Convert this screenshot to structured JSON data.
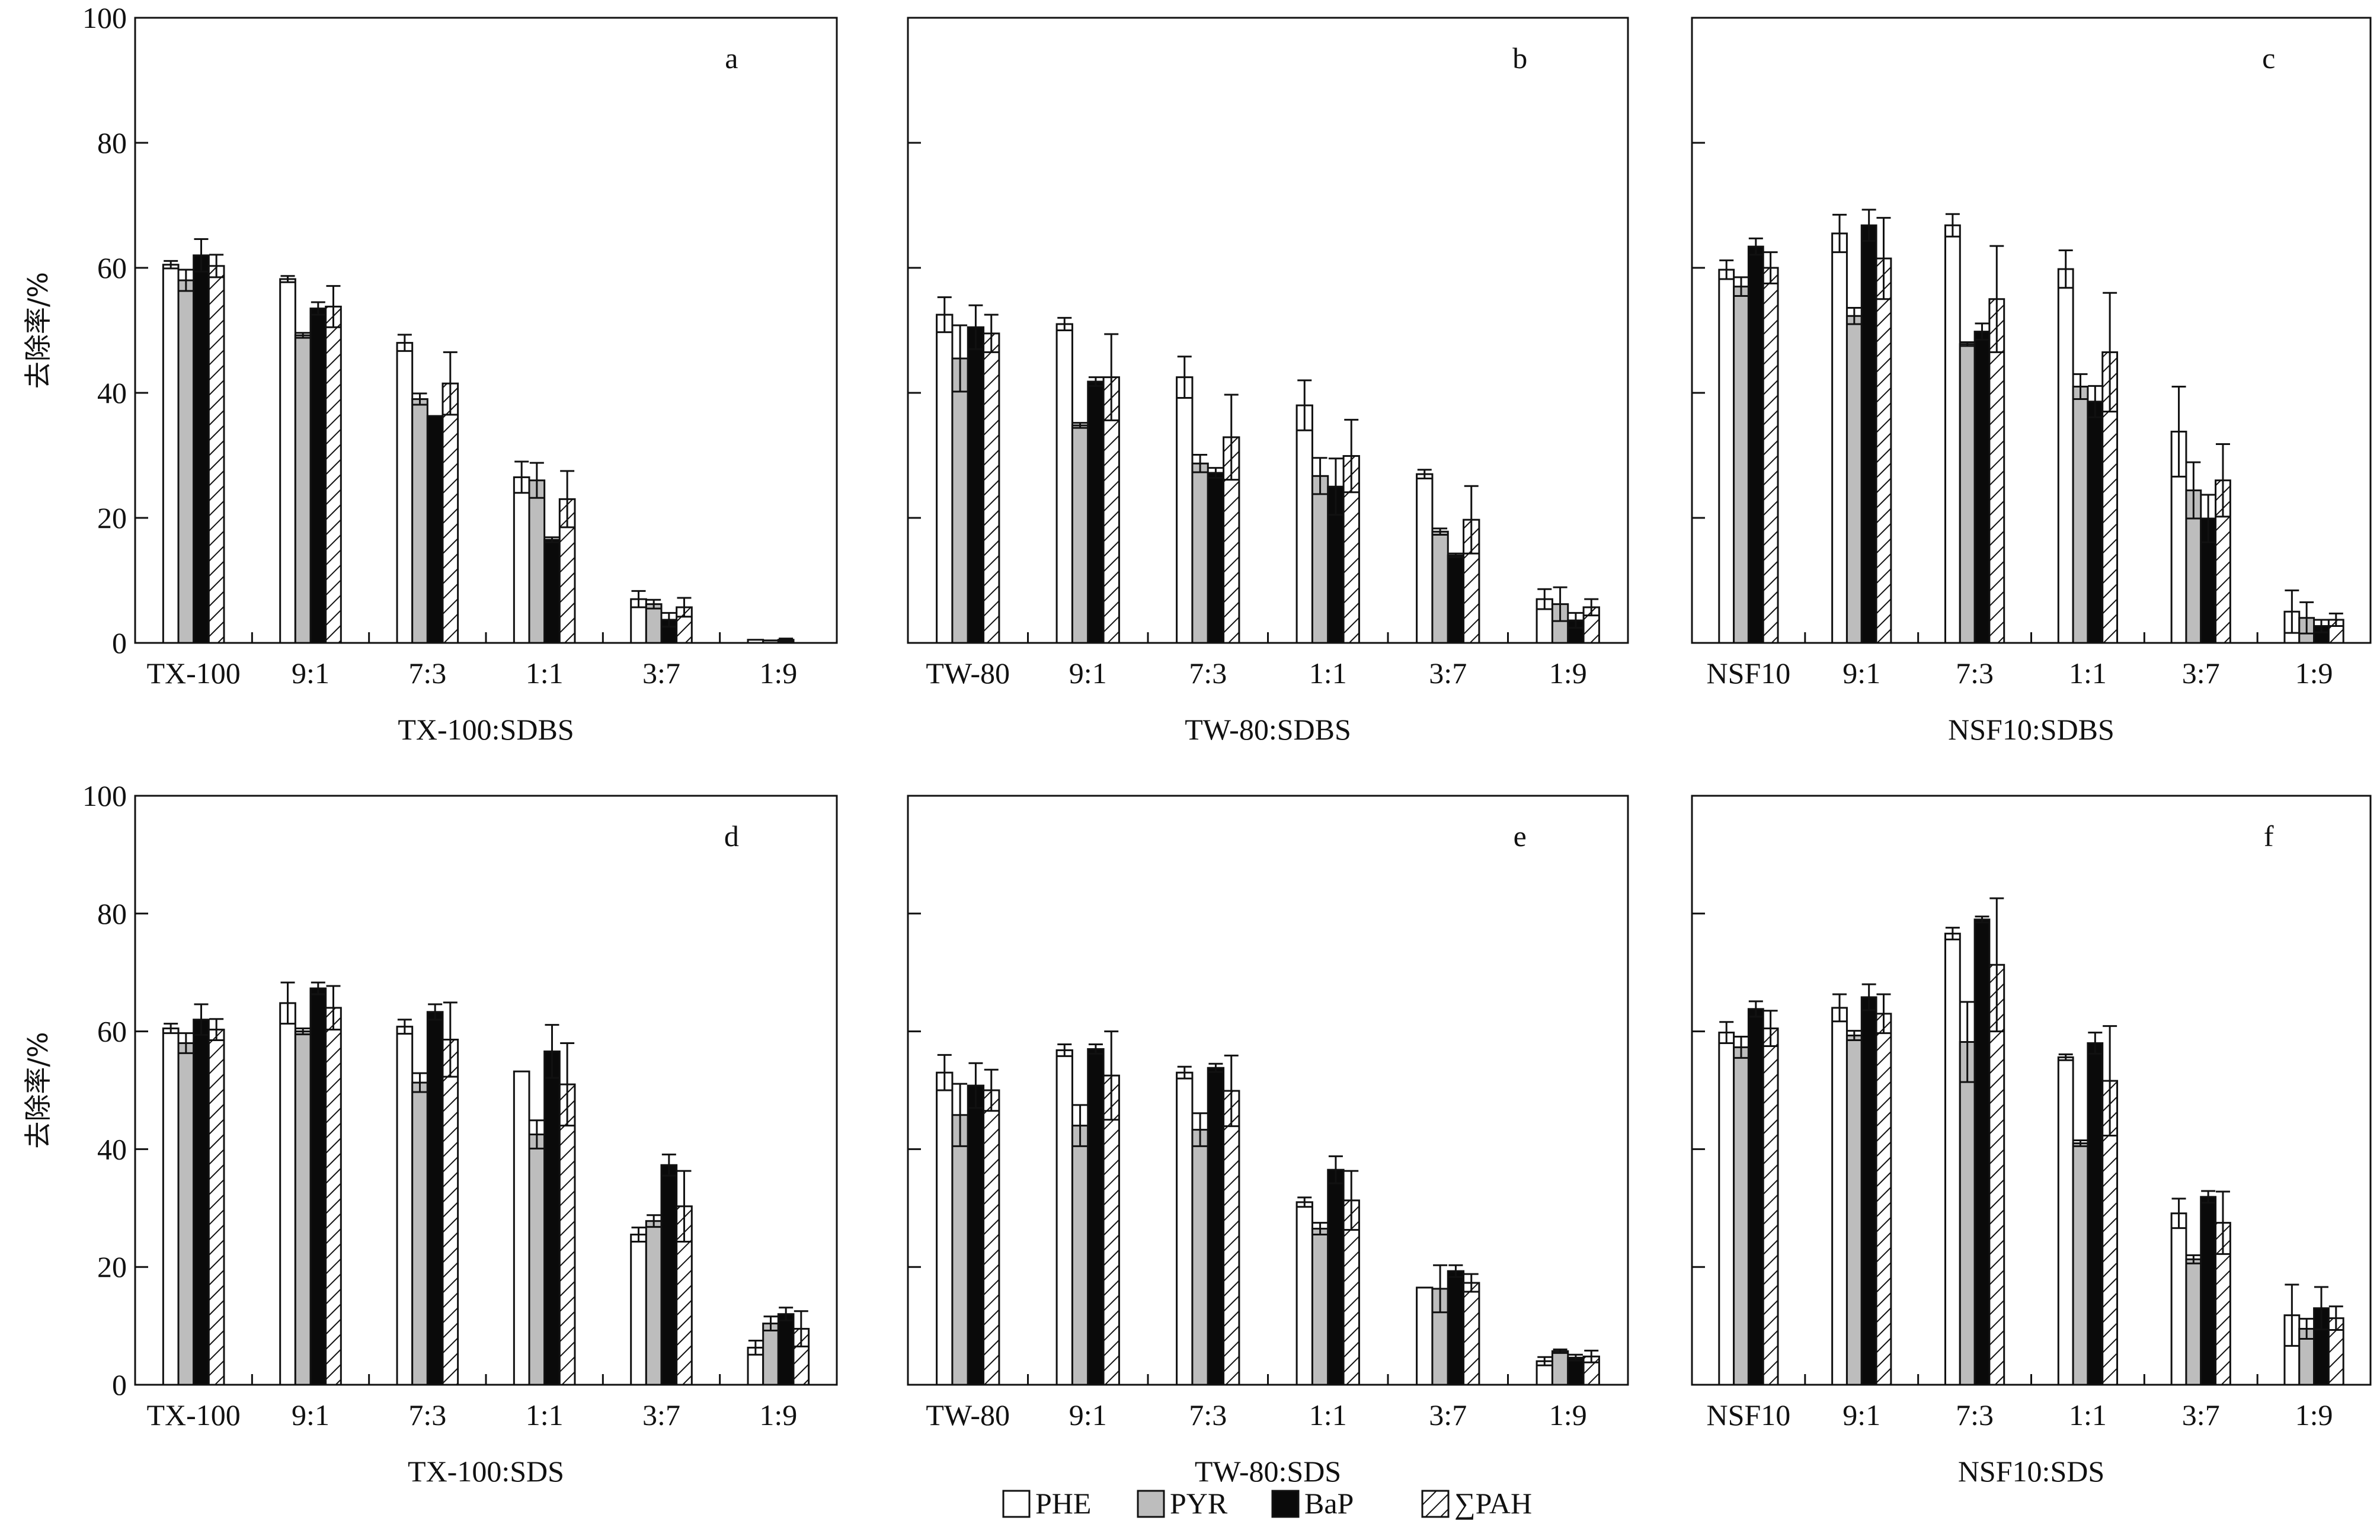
{
  "chart_data": {
    "type": "bar",
    "ylabel": "去除率/%",
    "ylim": [
      0,
      100
    ],
    "yticks": [
      0,
      20,
      40,
      60,
      80,
      100
    ],
    "legend": {
      "placement": "bottom-center",
      "entries": [
        {
          "name": "PHE",
          "fill": "white"
        },
        {
          "name": "PYR",
          "fill": "gray"
        },
        {
          "name": "BaP",
          "fill": "black"
        },
        {
          "name": "∑PAH",
          "fill": "hatched"
        }
      ]
    },
    "panels": [
      {
        "letter": "a",
        "xlabel": "TX-100:SDBS",
        "categories": [
          "TX-100",
          "9:1",
          "7:3",
          "1:1",
          "3:7",
          "1:9"
        ],
        "series": [
          {
            "name": "PHE",
            "values": [
              60.5,
              58.2,
              48.0,
              26.5,
              7.0,
              0.5
            ],
            "errors": [
              0.6,
              0.5,
              1.3,
              2.5,
              1.3,
              0.0
            ]
          },
          {
            "name": "PYR",
            "values": [
              58.0,
              49.2,
              39.0,
              26.0,
              6.2,
              0.4
            ],
            "errors": [
              1.7,
              0.4,
              0.9,
              2.8,
              0.7,
              0.0
            ]
          },
          {
            "name": "BaP",
            "values": [
              62.0,
              53.5,
              36.3,
              16.5,
              3.7,
              0.5
            ],
            "errors": [
              2.6,
              1.0,
              0.0,
              0.4,
              1.1,
              0.2
            ]
          },
          {
            "name": "∑PAH",
            "values": [
              60.3,
              53.8,
              41.5,
              23.0,
              5.7,
              0.0
            ],
            "errors": [
              1.8,
              3.3,
              5.0,
              4.5,
              1.5,
              0.0
            ]
          }
        ]
      },
      {
        "letter": "b",
        "xlabel": "TW-80:SDBS",
        "categories": [
          "TW-80",
          "9:1",
          "7:3",
          "1:1",
          "3:7",
          "1:9"
        ],
        "series": [
          {
            "name": "PHE",
            "values": [
              52.5,
              51.0,
              42.5,
              38.0,
              27.0,
              7.0
            ],
            "errors": [
              2.8,
              1.0,
              3.3,
              4.0,
              0.7,
              1.6
            ]
          },
          {
            "name": "PYR",
            "values": [
              45.5,
              34.8,
              28.7,
              26.7,
              17.8,
              6.2
            ],
            "errors": [
              5.3,
              0.4,
              1.4,
              2.9,
              0.5,
              2.7
            ]
          },
          {
            "name": "BaP",
            "values": [
              50.5,
              41.8,
              27.2,
              25.0,
              14.0,
              3.6
            ],
            "errors": [
              3.5,
              0.7,
              0.8,
              4.5,
              0.3,
              1.2
            ]
          },
          {
            "name": "∑PAH",
            "values": [
              49.5,
              42.5,
              32.9,
              29.9,
              19.7,
              5.7
            ],
            "errors": [
              3.0,
              6.9,
              6.8,
              5.8,
              5.4,
              1.3
            ]
          }
        ]
      },
      {
        "letter": "c",
        "xlabel": "NSF10:SDBS",
        "categories": [
          "NSF10",
          "9:1",
          "7:3",
          "1:1",
          "3:7",
          "1:9"
        ],
        "series": [
          {
            "name": "PHE",
            "values": [
              59.7,
              65.5,
              66.8,
              59.8,
              33.8,
              5.0
            ],
            "errors": [
              1.5,
              3.0,
              1.8,
              3.0,
              7.2,
              3.4
            ]
          },
          {
            "name": "PYR",
            "values": [
              57.0,
              52.3,
              47.8,
              41.0,
              24.4,
              4.0
            ],
            "errors": [
              1.5,
              1.3,
              0.3,
              2.0,
              4.5,
              2.5
            ]
          },
          {
            "name": "BaP",
            "values": [
              63.4,
              66.8,
              49.8,
              38.6,
              19.9,
              2.7
            ],
            "errors": [
              1.3,
              2.5,
              1.3,
              2.5,
              3.8,
              1.0
            ]
          },
          {
            "name": "∑PAH",
            "values": [
              60.0,
              61.5,
              55.0,
              46.5,
              26.0,
              3.7
            ],
            "errors": [
              2.5,
              6.5,
              8.5,
              9.5,
              5.8,
              1.0
            ]
          }
        ]
      },
      {
        "letter": "d",
        "xlabel": "TX-100:SDS",
        "categories": [
          "TX-100",
          "9:1",
          "7:3",
          "1:1",
          "3:7",
          "1:9"
        ],
        "series": [
          {
            "name": "PHE",
            "values": [
              60.5,
              64.8,
              60.8,
              53.2,
              25.5,
              6.3
            ],
            "errors": [
              0.8,
              3.5,
              1.2,
              0.0,
              1.2,
              1.2
            ]
          },
          {
            "name": "PYR",
            "values": [
              58.0,
              60.0,
              51.3,
              42.5,
              27.8,
              10.4
            ],
            "errors": [
              1.7,
              0.5,
              1.6,
              2.4,
              1.0,
              1.2
            ]
          },
          {
            "name": "BaP",
            "values": [
              62.0,
              67.3,
              63.3,
              56.6,
              37.3,
              12.0
            ],
            "errors": [
              2.6,
              1.0,
              1.3,
              4.5,
              1.8,
              1.1
            ]
          },
          {
            "name": "∑PAH",
            "values": [
              60.3,
              64.0,
              58.6,
              51.0,
              30.3,
              9.5
            ],
            "errors": [
              1.8,
              3.7,
              6.3,
              7.0,
              6.0,
              3.0
            ]
          }
        ]
      },
      {
        "letter": "e",
        "xlabel": "TW-80:SDS",
        "categories": [
          "TW-80",
          "9:1",
          "7:3",
          "1:1",
          "3:7",
          "1:9"
        ],
        "series": [
          {
            "name": "PHE",
            "values": [
              53.0,
              56.8,
              53.0,
              31.0,
              16.5,
              4.0
            ],
            "errors": [
              3.0,
              1.0,
              1.0,
              0.8,
              0.0,
              0.7
            ]
          },
          {
            "name": "PYR",
            "values": [
              45.8,
              44.0,
              43.3,
              26.5,
              16.3,
              5.7
            ],
            "errors": [
              5.3,
              3.5,
              2.8,
              1.0,
              4.0,
              0.3
            ]
          },
          {
            "name": "BaP",
            "values": [
              50.8,
              57.0,
              53.8,
              36.5,
              19.3,
              4.6
            ],
            "errors": [
              3.8,
              0.8,
              0.7,
              2.3,
              1.0,
              0.5
            ]
          },
          {
            "name": "∑PAH",
            "values": [
              50.0,
              52.5,
              49.9,
              31.3,
              17.3,
              4.8
            ],
            "errors": [
              3.5,
              7.5,
              6.0,
              5.0,
              1.5,
              1.0
            ]
          }
        ]
      },
      {
        "letter": "f",
        "xlabel": "NSF10:SDS",
        "categories": [
          "NSF10",
          "9:1",
          "7:3",
          "1:1",
          "3:7",
          "1:9"
        ],
        "series": [
          {
            "name": "PHE",
            "values": [
              59.8,
              64.0,
              76.6,
              55.6,
              29.1,
              11.8
            ],
            "errors": [
              1.8,
              2.3,
              1.0,
              0.5,
              2.5,
              5.2
            ]
          },
          {
            "name": "PYR",
            "values": [
              57.3,
              59.3,
              58.2,
              41.0,
              21.3,
              9.5
            ],
            "errors": [
              1.8,
              0.8,
              6.8,
              0.5,
              0.7,
              1.7
            ]
          },
          {
            "name": "BaP",
            "values": [
              63.8,
              65.8,
              79.0,
              58.0,
              31.9,
              13.0
            ],
            "errors": [
              1.3,
              2.2,
              0.5,
              1.8,
              1.0,
              3.6
            ]
          },
          {
            "name": "∑PAH",
            "values": [
              60.5,
              63.0,
              71.3,
              51.6,
              27.5,
              11.3
            ],
            "errors": [
              3.0,
              3.3,
              11.3,
              9.3,
              5.3,
              2.0
            ]
          }
        ]
      }
    ]
  }
}
